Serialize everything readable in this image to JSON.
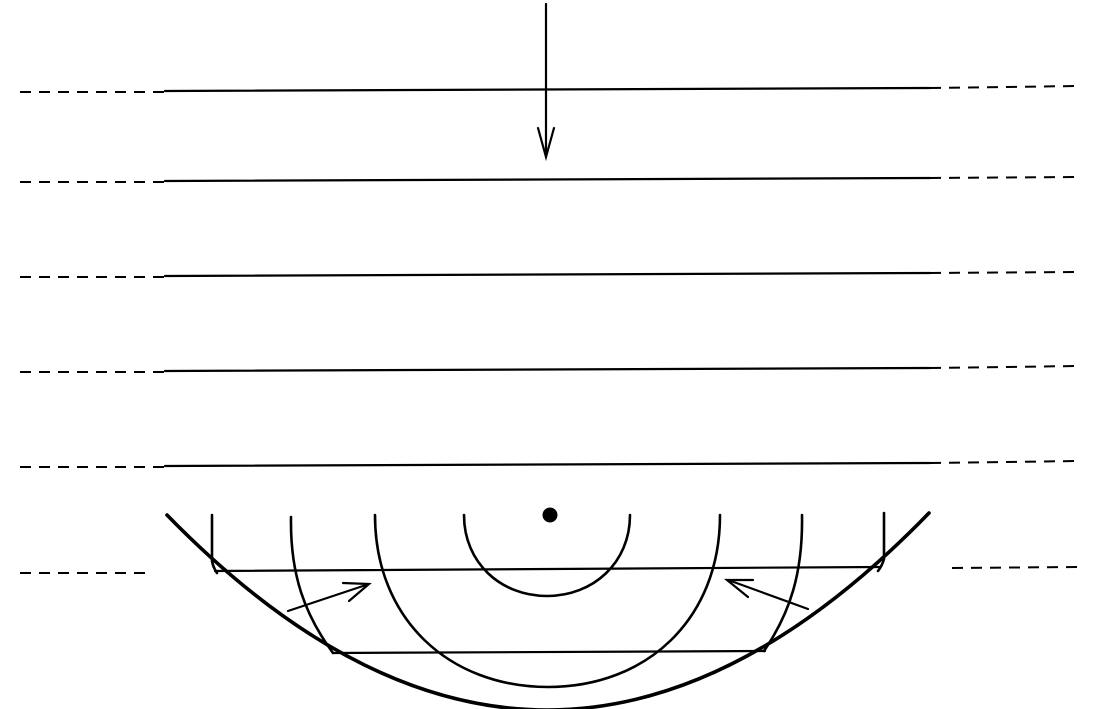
{
  "diagram": {
    "kind": "plane wavefronts incident on a concave spherical reflector, converging to a focal point",
    "colors": {
      "ink": "#000000",
      "background": "#ffffff"
    },
    "incident_wavefronts": {
      "count": 5,
      "style": "solid center with dashed extensions on both sides"
    },
    "lower_wavefront": {
      "style": "dashed extensions only beside the reflector, solid chords inside it"
    },
    "reflected_wavefronts": {
      "count": 4,
      "style": "concentric arcs centered on the focal point"
    },
    "markers": {
      "incident_arrow": "down-arrow",
      "focal_point": "filled-dot",
      "reflected_arrows": [
        "up-right-arrow",
        "up-left-arrow"
      ]
    }
  }
}
